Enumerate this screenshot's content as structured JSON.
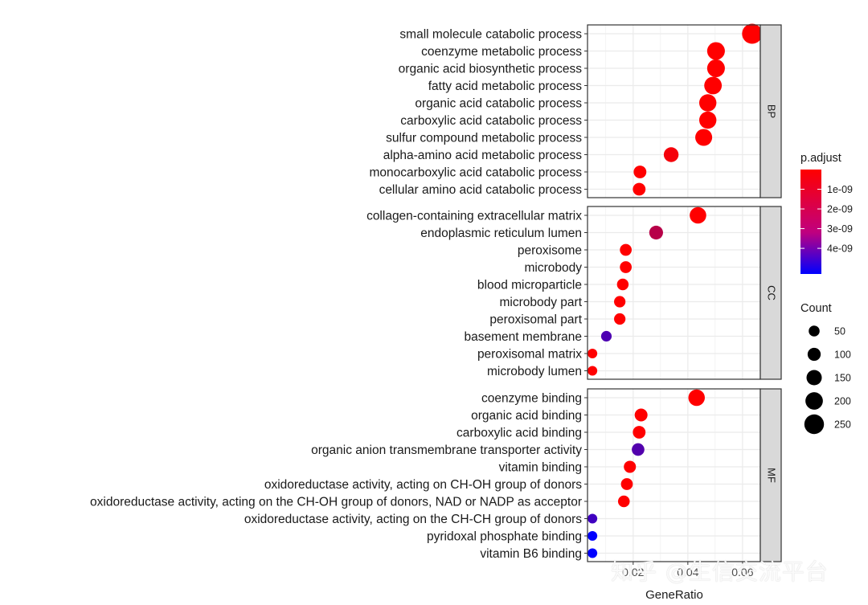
{
  "chart_data": {
    "type": "scatter",
    "xlabel": "GeneRatio",
    "xlim": [
      0.0033,
      0.0665
    ],
    "xticks": [
      0.02,
      0.04,
      0.06
    ],
    "xtick_labels": [
      "0.02",
      "0.04",
      "0.06"
    ],
    "facets": [
      {
        "name": "BP",
        "terms": [
          {
            "label": "small molecule catabolic process",
            "gene_ratio": 0.0635,
            "count": 260,
            "p_adjust": 1e-12
          },
          {
            "label": "coenzyme metabolic process",
            "gene_ratio": 0.0503,
            "count": 206,
            "p_adjust": 1e-12
          },
          {
            "label": "organic acid biosynthetic process",
            "gene_ratio": 0.0503,
            "count": 206,
            "p_adjust": 1e-12
          },
          {
            "label": "fatty acid metabolic process",
            "gene_ratio": 0.0492,
            "count": 202,
            "p_adjust": 1e-12
          },
          {
            "label": "organic acid catabolic process",
            "gene_ratio": 0.0473,
            "count": 194,
            "p_adjust": 1e-12
          },
          {
            "label": "carboxylic acid catabolic process",
            "gene_ratio": 0.0473,
            "count": 194,
            "p_adjust": 1e-12
          },
          {
            "label": "sulfur compound metabolic process",
            "gene_ratio": 0.0458,
            "count": 188,
            "p_adjust": 1e-12
          },
          {
            "label": "alpha-amino acid metabolic process",
            "gene_ratio": 0.0339,
            "count": 139,
            "p_adjust": 2e-10
          },
          {
            "label": "monocarboxylic acid catabolic process",
            "gene_ratio": 0.0225,
            "count": 92,
            "p_adjust": 1e-12
          },
          {
            "label": "cellular amino acid catabolic process",
            "gene_ratio": 0.0222,
            "count": 91,
            "p_adjust": 1e-12
          }
        ]
      },
      {
        "name": "CC",
        "terms": [
          {
            "label": "collagen-containing extracellular matrix",
            "gene_ratio": 0.0437,
            "count": 179,
            "p_adjust": 1e-12
          },
          {
            "label": "endoplasmic reticulum lumen",
            "gene_ratio": 0.0284,
            "count": 116,
            "p_adjust": 1.5e-09
          },
          {
            "label": "peroxisome",
            "gene_ratio": 0.0173,
            "count": 71,
            "p_adjust": 1e-12
          },
          {
            "label": "microbody",
            "gene_ratio": 0.0173,
            "count": 71,
            "p_adjust": 1e-12
          },
          {
            "label": "blood microparticle",
            "gene_ratio": 0.0162,
            "count": 66,
            "p_adjust": 1e-12
          },
          {
            "label": "microbody part",
            "gene_ratio": 0.0151,
            "count": 62,
            "p_adjust": 1e-12
          },
          {
            "label": "peroxisomal part",
            "gene_ratio": 0.0151,
            "count": 62,
            "p_adjust": 1e-12
          },
          {
            "label": "basement membrane",
            "gene_ratio": 0.0102,
            "count": 42,
            "p_adjust": 3.7e-09
          },
          {
            "label": "peroxisomal matrix",
            "gene_ratio": 0.0051,
            "count": 21,
            "p_adjust": 1e-12
          },
          {
            "label": "microbody lumen",
            "gene_ratio": 0.0051,
            "count": 21,
            "p_adjust": 1e-12
          }
        ]
      },
      {
        "name": "MF",
        "terms": [
          {
            "label": "coenzyme binding",
            "gene_ratio": 0.0432,
            "count": 177,
            "p_adjust": 1e-12
          },
          {
            "label": "organic acid binding",
            "gene_ratio": 0.0229,
            "count": 94,
            "p_adjust": 1e-12
          },
          {
            "label": "carboxylic acid binding",
            "gene_ratio": 0.0222,
            "count": 91,
            "p_adjust": 1e-12
          },
          {
            "label": "organic anion transmembrane transporter activity",
            "gene_ratio": 0.0218,
            "count": 89,
            "p_adjust": 3.6e-09
          },
          {
            "label": "vitamin binding",
            "gene_ratio": 0.0188,
            "count": 77,
            "p_adjust": 1e-12
          },
          {
            "label": "oxidoreductase activity, acting on CH-OH group of donors",
            "gene_ratio": 0.0177,
            "count": 72,
            "p_adjust": 1e-12
          },
          {
            "label": "oxidoreductase activity, acting on the CH-OH group of donors, NAD or NADP as acceptor",
            "gene_ratio": 0.0166,
            "count": 68,
            "p_adjust": 1e-12
          },
          {
            "label": "oxidoreductase activity, acting on the CH-CH group of donors",
            "gene_ratio": 0.0051,
            "count": 21,
            "p_adjust": 4e-09
          },
          {
            "label": "pyridoxal phosphate binding",
            "gene_ratio": 0.0051,
            "count": 21,
            "p_adjust": 5.3e-09
          },
          {
            "label": "vitamin B6 binding",
            "gene_ratio": 0.0051,
            "count": 21,
            "p_adjust": 5.3e-09
          }
        ]
      }
    ],
    "color_legend": {
      "title": "p.adjust",
      "range": [
        1e-12,
        5.3e-09
      ],
      "low_color": "#ff0000",
      "high_color": "#0000ff",
      "ticks": [
        1e-09,
        2e-09,
        3e-09,
        4e-09
      ],
      "tick_labels": [
        "1e-09",
        "2e-09",
        "3e-09",
        "4e-09"
      ]
    },
    "size_legend": {
      "title": "Count",
      "range": [
        21,
        260
      ],
      "values": [
        50,
        100,
        150,
        200,
        250
      ],
      "labels": [
        "50",
        "100",
        "150",
        "200",
        "250"
      ]
    },
    "panel_background": "#ffffff",
    "grid_color": "#ebebeb",
    "strip_background": "#d9d9d9"
  },
  "watermark": "知乎 @生信交流平台"
}
